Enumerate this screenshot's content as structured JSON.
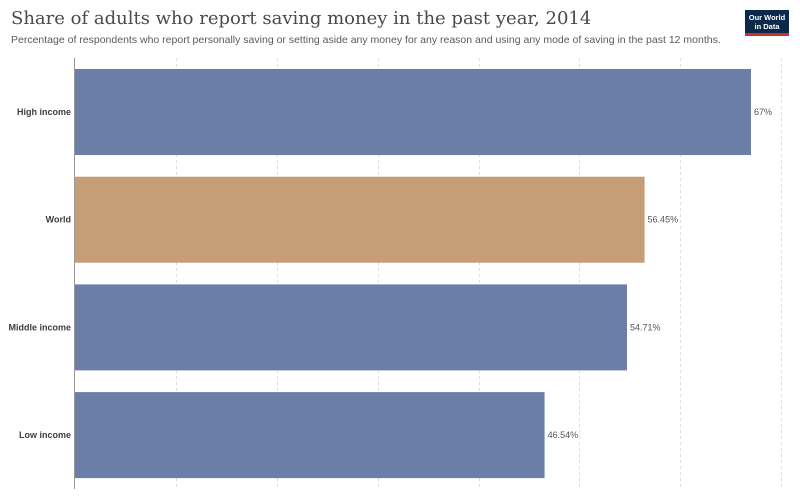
{
  "header": {
    "title": "Share of adults who report saving money in the past year, 2014",
    "subtitle": "Percentage of respondents who report personally saving or setting aside any money for any reason and using any mode of saving in the past 12 months."
  },
  "logo": {
    "line1": "Our World",
    "line2": "in Data",
    "background_color": "#0b2a4a",
    "accent_color": "#c8302b"
  },
  "chart_data": {
    "type": "bar",
    "orientation": "horizontal",
    "title": "Share of adults who report saving money in the past year, 2014",
    "subtitle": "Percentage of respondents who report personally saving or setting aside any money for any reason and using any mode of saving in the past 12 months.",
    "categories": [
      "High income",
      "World",
      "Middle income",
      "Low income"
    ],
    "values": [
      67,
      56.45,
      54.71,
      46.54
    ],
    "value_labels": [
      "67%",
      "56.45%",
      "54.71%",
      "46.54%"
    ],
    "colors": [
      "#6a7ea8",
      "#c59d76",
      "#6a7ea8",
      "#6a7ea8"
    ],
    "xlim": [
      0,
      70
    ],
    "grid": "vertical-dashed",
    "xlabel": "",
    "ylabel": ""
  }
}
